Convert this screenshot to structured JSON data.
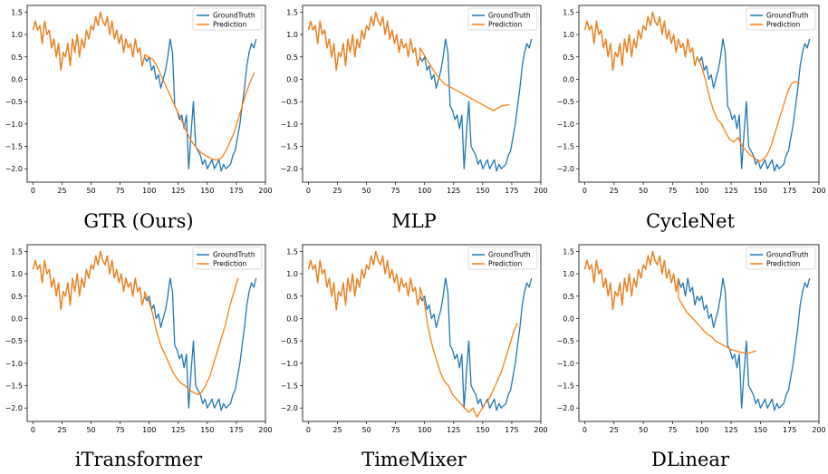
{
  "figure": {
    "legend": {
      "ground_truth": "GroundTruth",
      "prediction": "Prediction",
      "position": "top-right"
    },
    "colors": {
      "ground_truth": "#1f77b4",
      "prediction": "#ff7f0e",
      "axis": "#000000"
    },
    "ground_truth_series": [
      1.1,
      1.3,
      1.1,
      1.2,
      0.8,
      1.3,
      1.0,
      1.1,
      0.7,
      0.9,
      0.5,
      0.8,
      0.2,
      0.6,
      0.5,
      0.8,
      0.3,
      0.9,
      0.6,
      1.0,
      0.5,
      0.9,
      0.7,
      1.1,
      0.9,
      1.2,
      1.1,
      1.4,
      1.2,
      1.5,
      1.3,
      1.2,
      1.4,
      1.0,
      1.3,
      0.9,
      1.1,
      0.8,
      1.0,
      0.6,
      0.9,
      0.7,
      0.8,
      0.5,
      0.9,
      0.6,
      0.7,
      0.3,
      0.5,
      0.4,
      0.5,
      0.2,
      0.3,
      0.0,
      0.1,
      -0.2,
      0.0,
      0.2,
      0.5,
      0.9,
      0.6,
      -0.6,
      -0.7,
      -0.9,
      -0.8,
      -1.1,
      -0.8,
      -2.0,
      -1.2,
      -0.5,
      -1.5,
      -1.6,
      -1.7,
      -1.9,
      -1.8,
      -2.0,
      -1.9,
      -1.8,
      -2.0,
      -1.9,
      -1.8,
      -2.05,
      -1.9,
      -2.0,
      -1.95,
      -1.9,
      -1.7,
      -1.6,
      -1.3,
      -1.0,
      -0.6,
      -0.2,
      0.3,
      0.6,
      0.8,
      0.7,
      0.9
    ],
    "titles": [
      "GTR (Ours)",
      "MLP",
      "CycleNet",
      "iTransformer",
      "TimeMixer",
      "DLinear"
    ]
  },
  "chart_data": [
    {
      "type": "line",
      "title": "GTR (Ours)",
      "xlim": [
        -5,
        200
      ],
      "ylim": [
        -2.3,
        1.65
      ],
      "xticks": [
        0,
        25,
        50,
        75,
        100,
        125,
        150,
        175,
        200
      ],
      "yticks": [
        -2.0,
        -1.5,
        -1.0,
        -0.5,
        0.0,
        0.5,
        1.0,
        1.5
      ],
      "ytick_labels": [
        "−2.0",
        "−1.5",
        "−1.0",
        "−0.5",
        "0.0",
        "0.5",
        "1.0",
        "1.5"
      ],
      "prediction": {
        "start": 96,
        "values": [
          0.55,
          0.5,
          0.45,
          0.3,
          0.1,
          -0.1,
          -0.3,
          -0.5,
          -0.7,
          -0.9,
          -1.1,
          -1.3,
          -1.45,
          -1.55,
          -1.65,
          -1.7,
          -1.75,
          -1.8,
          -1.8,
          -1.75,
          -1.6,
          -1.4,
          -1.2,
          -0.9,
          -0.6,
          -0.3,
          -0.05,
          0.15
        ]
      }
    },
    {
      "type": "line",
      "title": "MLP",
      "xlim": [
        -5,
        200
      ],
      "ylim": [
        -2.3,
        1.65
      ],
      "xticks": [
        0,
        25,
        50,
        75,
        100,
        125,
        150,
        175,
        200
      ],
      "yticks": [
        -2.0,
        -1.5,
        -1.0,
        -0.5,
        0.0,
        0.5,
        1.0,
        1.5
      ],
      "ytick_labels": [
        "−2.0",
        "−1.5",
        "−1.0",
        "−0.5",
        "0.0",
        "0.5",
        "1.0",
        "1.5"
      ],
      "prediction": {
        "start": 96,
        "values": [
          0.7,
          0.55,
          0.4,
          0.25,
          0.1,
          0.0,
          -0.1,
          -0.15,
          -0.2,
          -0.25,
          -0.3,
          -0.35,
          -0.4,
          -0.45,
          -0.5,
          -0.55,
          -0.6,
          -0.65,
          -0.7,
          -0.65,
          -0.6,
          -0.58,
          -0.57
        ]
      }
    },
    {
      "type": "line",
      "title": "CycleNet",
      "xlim": [
        -5,
        200
      ],
      "ylim": [
        -2.3,
        1.65
      ],
      "xticks": [
        0,
        25,
        50,
        75,
        100,
        125,
        150,
        175,
        200
      ],
      "yticks": [
        -2.0,
        -1.5,
        -1.0,
        -0.5,
        0.0,
        0.5,
        1.0,
        1.5
      ],
      "ytick_labels": [
        "−2.0",
        "−1.5",
        "−1.0",
        "−0.5",
        "0.0",
        "0.5",
        "1.0",
        "1.5"
      ],
      "prediction": {
        "start": 96,
        "values": [
          0.5,
          0.3,
          0.0,
          -0.4,
          -0.7,
          -0.9,
          -1.0,
          -1.2,
          -1.35,
          -1.4,
          -1.3,
          -1.5,
          -1.6,
          -1.7,
          -1.75,
          -1.85,
          -1.8,
          -1.7,
          -1.5,
          -1.2,
          -0.9,
          -0.6,
          -0.3,
          -0.1,
          -0.05,
          -0.1
        ]
      }
    },
    {
      "type": "line",
      "title": "iTransformer",
      "xlim": [
        -5,
        200
      ],
      "ylim": [
        -2.3,
        1.65
      ],
      "xticks": [
        0,
        25,
        50,
        75,
        100,
        125,
        150,
        175,
        200
      ],
      "yticks": [
        -2.0,
        -1.5,
        -1.0,
        -0.5,
        0.0,
        0.5,
        1.0,
        1.5
      ],
      "ytick_labels": [
        "−2.0",
        "−1.5",
        "−1.0",
        "−0.5",
        "0.0",
        "0.5",
        "1.0",
        "1.5"
      ],
      "prediction": {
        "start": 96,
        "values": [
          0.6,
          0.4,
          0.1,
          -0.3,
          -0.6,
          -0.8,
          -1.0,
          -1.2,
          -1.35,
          -1.45,
          -1.5,
          -1.6,
          -1.65,
          -1.7,
          -1.65,
          -1.5,
          -1.3,
          -1.0,
          -0.7,
          -0.4,
          -0.1,
          0.3,
          0.6,
          0.9
        ]
      }
    },
    {
      "type": "line",
      "title": "TimeMixer",
      "xlim": [
        -5,
        200
      ],
      "ylim": [
        -2.3,
        1.65
      ],
      "xticks": [
        0,
        25,
        50,
        75,
        100,
        125,
        150,
        175,
        200
      ],
      "yticks": [
        -2.0,
        -1.5,
        -1.0,
        -0.5,
        0.0,
        0.5,
        1.0,
        1.5
      ],
      "ytick_labels": [
        "−2.0",
        "−1.5",
        "−1.0",
        "−0.5",
        "0.0",
        "0.5",
        "1.0",
        "1.5"
      ],
      "prediction": {
        "start": 96,
        "values": [
          0.7,
          0.4,
          -0.2,
          -0.6,
          -0.9,
          -1.2,
          -1.4,
          -1.5,
          -1.7,
          -1.8,
          -1.9,
          -2.0,
          -2.1,
          -2.0,
          -2.2,
          -2.05,
          -1.9,
          -1.8,
          -1.6,
          -1.4,
          -1.2,
          -0.9,
          -0.6,
          -0.3,
          -0.1
        ]
      }
    },
    {
      "type": "line",
      "title": "DLinear",
      "xlim": [
        -5,
        200
      ],
      "ylim": [
        -2.3,
        1.65
      ],
      "xticks": [
        0,
        25,
        50,
        75,
        100,
        125,
        150,
        175,
        200
      ],
      "yticks": [
        -2.0,
        -1.5,
        -1.0,
        -0.5,
        0.0,
        0.5,
        1.0,
        1.5
      ],
      "ytick_labels": [
        "−2.0",
        "−1.5",
        "−1.0",
        "−0.5",
        "0.0",
        "0.5",
        "1.0",
        "1.5"
      ],
      "prediction": {
        "start": 80,
        "values": [
          0.45,
          0.3,
          0.15,
          0.05,
          -0.05,
          -0.15,
          -0.25,
          -0.35,
          -0.4,
          -0.5,
          -0.55,
          -0.6,
          -0.65,
          -0.7,
          -0.72,
          -0.75,
          -0.77,
          -0.78,
          -0.75,
          -0.72
        ]
      }
    }
  ]
}
